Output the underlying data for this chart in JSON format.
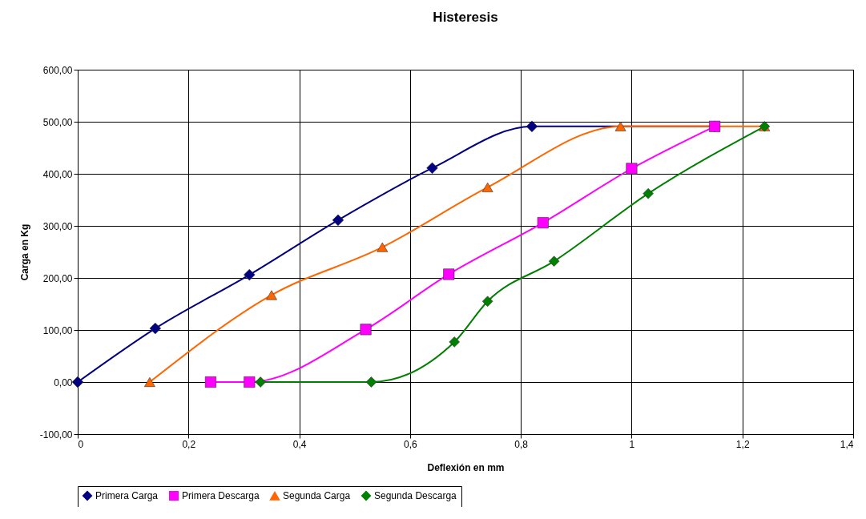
{
  "chart_data": {
    "type": "line",
    "title": "Histeresis",
    "xlabel": "Deflexión en mm",
    "ylabel": "Carga en Kg",
    "xlim": [
      0,
      1.4
    ],
    "xticks": [
      0,
      {
        "value": 0.2,
        "label": "0,2"
      },
      {
        "value": 0.4,
        "label": "0,4"
      },
      {
        "value": 0.6,
        "label": "0,6"
      },
      {
        "value": 0.8,
        "label": "0,8"
      },
      1,
      {
        "value": 1.2,
        "label": "1,2"
      },
      {
        "value": 1.4,
        "label": "1,4"
      }
    ],
    "ylim": [
      -100,
      600
    ],
    "yticks": [
      {
        "value": -100,
        "label": "-100,00"
      },
      {
        "value": 0,
        "label": "0,00"
      },
      {
        "value": 100,
        "label": "100,00"
      },
      {
        "value": 200,
        "label": "200,00"
      },
      {
        "value": 300,
        "label": "300,00"
      },
      {
        "value": 400,
        "label": "400,00"
      },
      {
        "value": 500,
        "label": "500,00"
      },
      {
        "value": 600,
        "label": "600,00"
      }
    ],
    "grid": true,
    "legend": "bottom",
    "series": [
      {
        "name": "Primera Carga",
        "color": "#000080",
        "marker": "diamond",
        "x": [
          0,
          0.14,
          0.31,
          0.47,
          0.64,
          0.82,
          1.15
        ],
        "values": [
          0,
          103,
          206,
          311,
          411,
          491,
          491
        ]
      },
      {
        "name": "Primera Descarga",
        "color": "#ff00ff",
        "marker": "square",
        "x": [
          1.15,
          1.0,
          0.84,
          0.67,
          0.52,
          0.31,
          0.24
        ],
        "values": [
          491,
          410,
          306,
          207,
          101,
          0,
          0
        ]
      },
      {
        "name": "Segunda Carga",
        "color": "#ff6600",
        "marker": "triangle",
        "x": [
          0.13,
          0.35,
          0.55,
          0.74,
          0.98,
          1.24
        ],
        "values": [
          0,
          167,
          259,
          374,
          491,
          491
        ]
      },
      {
        "name": "Segunda Descarga",
        "color": "#008000",
        "marker": "diamond",
        "x": [
          1.24,
          1.03,
          0.86,
          0.74,
          0.68,
          0.53,
          0.33
        ],
        "values": [
          491,
          362,
          232,
          155,
          77,
          0,
          0
        ]
      }
    ]
  }
}
